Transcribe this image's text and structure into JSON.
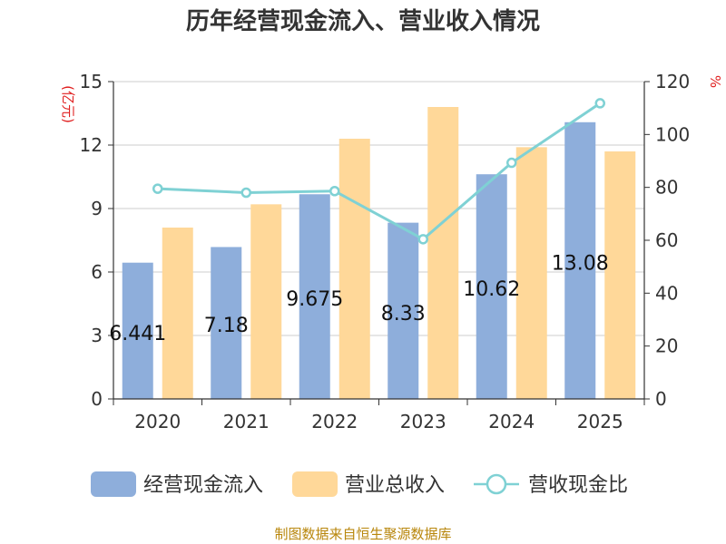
{
  "chart_data": {
    "type": "bar",
    "title": "历年经营现金流入、营业收入情况",
    "categories": [
      "2020",
      "2021",
      "2022",
      "2023",
      "2024",
      "2025"
    ],
    "series": [
      {
        "name": "经营现金流入",
        "kind": "bar",
        "axis": "left",
        "color": "#8eaedb",
        "values": [
          6.441,
          7.18,
          9.675,
          8.33,
          10.62,
          13.08
        ],
        "labels": [
          "6.441",
          "7.18",
          "9.675",
          "8.33",
          "10.62",
          "13.08"
        ]
      },
      {
        "name": "营业总收入",
        "kind": "bar",
        "axis": "left",
        "color": "#ffd899",
        "values": [
          8.1,
          9.2,
          12.3,
          13.8,
          11.9,
          11.7
        ]
      },
      {
        "name": "营收现金比",
        "kind": "line",
        "axis": "right",
        "color": "#7fd1d4",
        "values": [
          79.5,
          78,
          78.6,
          60.4,
          89.3,
          111.8
        ]
      }
    ],
    "y_left": {
      "unit": "(亿元)",
      "min": 0,
      "max": 15,
      "ticks": [
        0,
        3,
        6,
        9,
        12,
        15
      ]
    },
    "y_right": {
      "unit": "%",
      "min": 0,
      "max": 120,
      "ticks": [
        0,
        20,
        40,
        60,
        80,
        100,
        120
      ]
    },
    "grid": true,
    "legend_position": "bottom"
  },
  "source_text": "制图数据来自恒生聚源数据库"
}
